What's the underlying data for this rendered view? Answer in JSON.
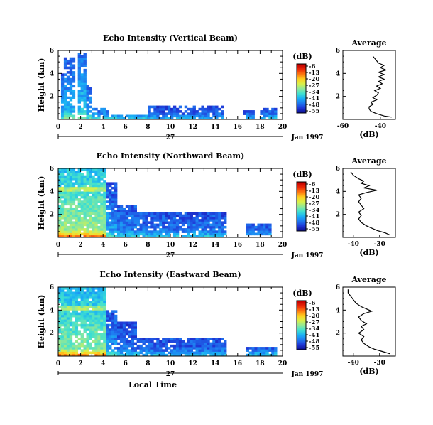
{
  "chart_data": [
    {
      "type": "heatmap",
      "title": "Echo Intensity (Vertical Beam)",
      "ylabel": "Height (km)",
      "xlim": [
        0,
        20
      ],
      "ylim": [
        0,
        6
      ],
      "xticks": [
        "0",
        "2",
        "4",
        "6",
        "8",
        "10",
        "12",
        "14",
        "16",
        "18",
        "20"
      ],
      "yticks": [
        "2",
        "4",
        "6"
      ],
      "date_day": "27",
      "date_label": "Jan 1997",
      "colorbar": {
        "unit": "(dB)",
        "ticks": [
          "-6",
          "-13",
          "-20",
          "-27",
          "-34",
          "-41",
          "-48",
          "-55"
        ],
        "range": [
          -55,
          -6
        ]
      },
      "average": {
        "title": "Average",
        "xlabel": "(dB)",
        "xticks": [
          "-60",
          "-40"
        ],
        "xlim": [
          -60,
          -32
        ],
        "ylim": [
          0,
          6
        ],
        "profile": [
          [
            -34,
            0.2
          ],
          [
            -38,
            0.3
          ],
          [
            -42,
            0.5
          ],
          [
            -45,
            0.7
          ],
          [
            -46,
            0.9
          ],
          [
            -46,
            1.1
          ],
          [
            -44,
            1.3
          ],
          [
            -45,
            1.5
          ],
          [
            -42,
            1.7
          ],
          [
            -44,
            1.9
          ],
          [
            -42,
            2.1
          ],
          [
            -41,
            2.3
          ],
          [
            -43,
            2.5
          ],
          [
            -40,
            2.7
          ],
          [
            -42,
            2.9
          ],
          [
            -39,
            3.1
          ],
          [
            -41,
            3.3
          ],
          [
            -38,
            3.5
          ],
          [
            -41,
            3.7
          ],
          [
            -38,
            3.9
          ],
          [
            -41,
            4.1
          ],
          [
            -37,
            4.3
          ],
          [
            -40,
            4.5
          ],
          [
            -38,
            4.7
          ],
          [
            -41,
            4.9
          ],
          [
            -42,
            5.1
          ],
          [
            -43,
            5.3
          ],
          [
            -44,
            5.5
          ]
        ]
      },
      "data_bands": [
        {
          "x0": 0.2,
          "x1": 0.6,
          "y0": 0.1,
          "y1": 4.0,
          "int": 0.3
        },
        {
          "x0": 0.6,
          "x1": 1.6,
          "y0": 0.1,
          "y1": 5.5,
          "int": 0.35
        },
        {
          "x0": 1.8,
          "x1": 2.6,
          "y0": 0.1,
          "y1": 5.8,
          "int": 0.38
        },
        {
          "x0": 2.6,
          "x1": 3.0,
          "y0": 0.1,
          "y1": 3.0,
          "int": 0.3
        },
        {
          "x0": 3.0,
          "x1": 4.5,
          "y0": 0.1,
          "y1": 1.1,
          "int": 0.25
        },
        {
          "x0": 4.5,
          "x1": 8.0,
          "y0": 0.1,
          "y1": 0.4,
          "int": 0.22
        },
        {
          "x0": 8.0,
          "x1": 14.8,
          "y0": 0.1,
          "y1": 1.3,
          "int": 0.18
        },
        {
          "x0": 16.5,
          "x1": 17.5,
          "y0": 0.1,
          "y1": 0.8,
          "int": 0.18
        },
        {
          "x0": 18.0,
          "x1": 19.5,
          "y0": 0.1,
          "y1": 1.0,
          "int": 0.2
        }
      ]
    },
    {
      "type": "heatmap",
      "title": "Echo Intensity (Northward Beam)",
      "ylabel": "Height (km)",
      "xlim": [
        0,
        20
      ],
      "ylim": [
        0,
        6
      ],
      "xticks": [
        "0",
        "2",
        "4",
        "6",
        "8",
        "10",
        "12",
        "14",
        "16",
        "18",
        "20"
      ],
      "yticks": [
        "2",
        "4",
        "6"
      ],
      "date_day": "27",
      "date_label": "Jan 1997",
      "colorbar": {
        "unit": "(dB)",
        "ticks": [
          "-6",
          "-13",
          "-20",
          "-27",
          "-34",
          "-41",
          "-48",
          "-55"
        ],
        "range": [
          -55,
          -6
        ]
      },
      "average": {
        "title": "Average",
        "xlabel": "(dB)",
        "xticks": [
          "-40",
          "-30"
        ],
        "xlim": [
          -44,
          -24
        ],
        "ylim": [
          0,
          6
        ],
        "profile": [
          [
            -26,
            0.2
          ],
          [
            -28,
            0.4
          ],
          [
            -31,
            0.6
          ],
          [
            -33,
            0.8
          ],
          [
            -35,
            1.0
          ],
          [
            -37,
            1.3
          ],
          [
            -38,
            1.6
          ],
          [
            -37,
            1.9
          ],
          [
            -38,
            2.2
          ],
          [
            -36,
            2.5
          ],
          [
            -37,
            2.8
          ],
          [
            -38,
            3.1
          ],
          [
            -37,
            3.4
          ],
          [
            -38,
            3.7
          ],
          [
            -35,
            3.9
          ],
          [
            -31,
            4.1
          ],
          [
            -36,
            4.3
          ],
          [
            -34,
            4.5
          ],
          [
            -37,
            4.7
          ],
          [
            -36,
            4.9
          ],
          [
            -38,
            5.1
          ],
          [
            -40,
            5.4
          ],
          [
            -41,
            5.7
          ]
        ]
      },
      "data_bands": [
        {
          "x0": 0,
          "x1": 4.2,
          "y0": 0,
          "y1": 6,
          "int": 0.55
        },
        {
          "x0": 4.2,
          "x1": 5.2,
          "y0": 0,
          "y1": 4.8,
          "int": 0.3
        },
        {
          "x0": 5.2,
          "x1": 7.0,
          "y0": 0,
          "y1": 2.8,
          "int": 0.25
        },
        {
          "x0": 7.0,
          "x1": 15.0,
          "y0": 0,
          "y1": 2.2,
          "int": 0.22
        },
        {
          "x0": 16.8,
          "x1": 19.0,
          "y0": 0.3,
          "y1": 1.3,
          "int": 0.2
        }
      ]
    },
    {
      "type": "heatmap",
      "title": "Echo Intensity (Eastward Beam)",
      "ylabel": "Height (km)",
      "xlabel": "Local Time",
      "xlim": [
        0,
        20
      ],
      "ylim": [
        0,
        6
      ],
      "xticks": [
        "0",
        "2",
        "4",
        "6",
        "8",
        "10",
        "12",
        "14",
        "16",
        "18",
        "20"
      ],
      "yticks": [
        "2",
        "4",
        "6"
      ],
      "date_day": "27",
      "date_label": "Jan 1997",
      "colorbar": {
        "unit": "(dB)",
        "ticks": [
          "-6",
          "-13",
          "-20",
          "-27",
          "-34",
          "-41",
          "-48",
          "-55"
        ],
        "range": [
          -55,
          -6
        ]
      },
      "average": {
        "title": "Average",
        "xlabel": "(dB)",
        "xticks": [
          "-40",
          "-30"
        ],
        "xlim": [
          -44,
          -24
        ],
        "ylim": [
          0,
          6
        ],
        "profile": [
          [
            -26,
            0.2
          ],
          [
            -29,
            0.4
          ],
          [
            -32,
            0.6
          ],
          [
            -34,
            0.8
          ],
          [
            -36,
            1.1
          ],
          [
            -37,
            1.4
          ],
          [
            -36,
            1.7
          ],
          [
            -38,
            2.0
          ],
          [
            -36,
            2.3
          ],
          [
            -37,
            2.6
          ],
          [
            -35,
            2.8
          ],
          [
            -37,
            3.1
          ],
          [
            -38,
            3.4
          ],
          [
            -36,
            3.7
          ],
          [
            -33,
            3.9
          ],
          [
            -35,
            4.1
          ],
          [
            -37,
            4.3
          ],
          [
            -39,
            4.6
          ],
          [
            -40,
            4.9
          ],
          [
            -41,
            5.2
          ],
          [
            -42,
            5.5
          ],
          [
            -42,
            5.8
          ]
        ]
      },
      "data_bands": [
        {
          "x0": 0,
          "x1": 4.2,
          "y0": 0,
          "y1": 6,
          "int": 0.52
        },
        {
          "x0": 4.2,
          "x1": 5.2,
          "y0": 0,
          "y1": 4.0,
          "int": 0.28
        },
        {
          "x0": 5.2,
          "x1": 7.0,
          "y0": 0,
          "y1": 3.0,
          "int": 0.22
        },
        {
          "x0": 7.0,
          "x1": 15.0,
          "y0": 0,
          "y1": 1.6,
          "int": 0.2
        },
        {
          "x0": 16.8,
          "x1": 19.5,
          "y0": 0,
          "y1": 0.9,
          "int": 0.2
        }
      ]
    }
  ],
  "colors": {
    "jet": [
      "#0b0d8a",
      "#1f36d6",
      "#1f78f0",
      "#1ab0f5",
      "#3fe0d0",
      "#8ee89a",
      "#d8f04a",
      "#ffd020",
      "#ff7a10",
      "#ee2a08",
      "#c00000"
    ]
  }
}
